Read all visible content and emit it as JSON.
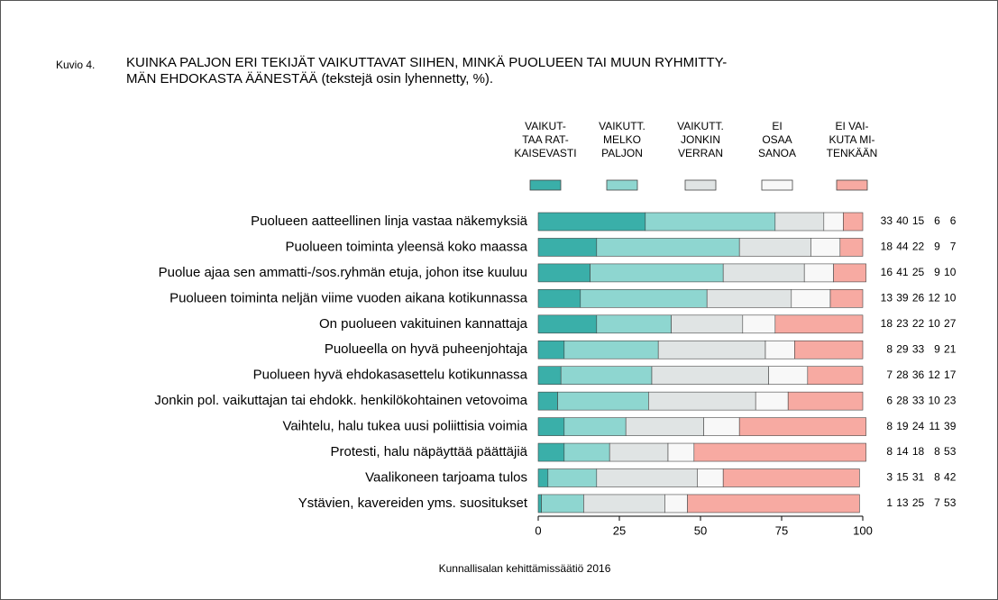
{
  "chart_data": {
    "type": "stacked_barh",
    "figure_label": "Kuvio 4.",
    "title": "KUINKA PALJON ERI TEKIJÄT VAIKUTTAVAT SIIHEN, MINKÄ PUOLUEEN TAI MUUN RYHMITTY-\nMÄN EHDOKASTA ÄÄNESTÄÄ (tekstejä osin lyhennetty, %).",
    "source": "Kunnallisalan kehittämissäätiö 2016",
    "categories": [
      "Puolueen aatteellinen linja vastaa näkemyksiä",
      "Puolueen toiminta yleensä koko maassa",
      "Puolue ajaa sen ammatti-/sos.ryhmän etuja, johon itse kuuluu",
      "Puolueen toiminta neljän viime vuoden aikana kotikunnassa",
      "On puolueen vakituinen kannattaja",
      "Puolueella on hyvä puheenjohtaja",
      "Puolueen hyvä ehdokasasettelu kotikunnassa",
      "Jonkin pol. vaikuttajan tai ehdokk. henkilökohtainen vetovoima",
      "Vaihtelu, halu tukea uusi poliittisia voimia",
      "Protesti, halu näpäyttää päättäjiä",
      "Vaalikoneen tarjoama tulos",
      "Ystävien, kavereiden yms. suositukset"
    ],
    "series": [
      {
        "name": "VAIKUT-\nTAA RAT-\nKAISEVASTI",
        "color": "#3aafa9",
        "values": [
          33,
          18,
          16,
          13,
          18,
          8,
          7,
          6,
          8,
          8,
          3,
          1
        ]
      },
      {
        "name": "VAIKUTT.\nMELKO\nPALJON",
        "color": "#8ed6d0",
        "values": [
          40,
          44,
          41,
          39,
          23,
          29,
          28,
          28,
          19,
          14,
          15,
          13
        ]
      },
      {
        "name": "VAIKUTT.\nJONKIN\nVERRAN",
        "color": "#e0e4e4",
        "values": [
          15,
          22,
          25,
          26,
          22,
          33,
          36,
          33,
          24,
          18,
          31,
          25
        ]
      },
      {
        "name": "EI\nOSAA\nSANOA",
        "color": "#f8f8f8",
        "values": [
          6,
          9,
          9,
          12,
          10,
          9,
          12,
          10,
          11,
          8,
          8,
          7
        ]
      },
      {
        "name": "EI VAI-\nKUTA MI-\nTENKÄÄN",
        "color": "#f7aaa2",
        "values": [
          6,
          7,
          10,
          10,
          27,
          21,
          17,
          23,
          39,
          53,
          42,
          53
        ]
      }
    ],
    "xlim": [
      0,
      100
    ],
    "xticks": [
      0,
      25,
      50,
      75,
      100
    ]
  }
}
